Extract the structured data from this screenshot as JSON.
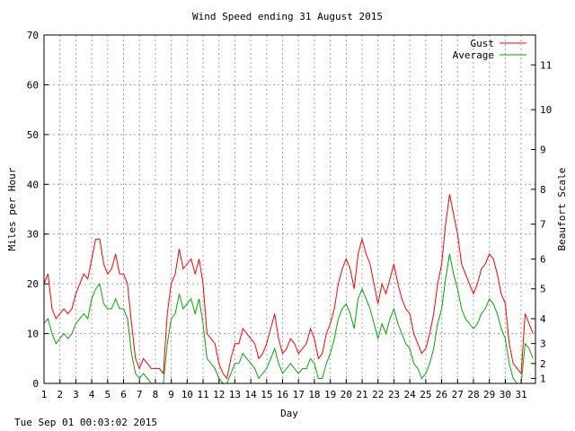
{
  "chart_data": {
    "type": "line",
    "title": "Wind Speed ending 31 August 2015",
    "xlabel": "Day",
    "ylabel": "Miles per Hour",
    "y2label": "Beaufort Scale",
    "xlim": [
      1,
      31.9
    ],
    "ylim": [
      0,
      70
    ],
    "x_ticks": [
      1,
      2,
      3,
      4,
      5,
      6,
      7,
      8,
      9,
      10,
      11,
      12,
      13,
      14,
      15,
      16,
      17,
      18,
      19,
      20,
      21,
      22,
      23,
      24,
      25,
      26,
      27,
      28,
      29,
      30,
      31
    ],
    "y_ticks": [
      0,
      10,
      20,
      30,
      40,
      50,
      60,
      70
    ],
    "beaufort_ticks": [
      {
        "label": "1",
        "mph": 1
      },
      {
        "label": "2",
        "mph": 4
      },
      {
        "label": "3",
        "mph": 8
      },
      {
        "label": "4",
        "mph": 13
      },
      {
        "label": "5",
        "mph": 19
      },
      {
        "label": "6",
        "mph": 25
      },
      {
        "label": "7",
        "mph": 32
      },
      {
        "label": "8",
        "mph": 39
      },
      {
        "label": "9",
        "mph": 47
      },
      {
        "label": "10",
        "mph": 55
      },
      {
        "label": "11",
        "mph": 64
      }
    ],
    "grid": true,
    "legend_position": "top-right",
    "series": [
      {
        "name": "Gust",
        "color": "#ff0000",
        "points": [
          [
            1.0,
            20
          ],
          [
            1.25,
            22
          ],
          [
            1.5,
            15
          ],
          [
            1.75,
            13
          ],
          [
            2.0,
            14
          ],
          [
            2.25,
            15
          ],
          [
            2.5,
            14
          ],
          [
            2.75,
            15
          ],
          [
            3.0,
            18
          ],
          [
            3.25,
            20
          ],
          [
            3.5,
            22
          ],
          [
            3.75,
            21
          ],
          [
            4.0,
            25
          ],
          [
            4.25,
            29
          ],
          [
            4.5,
            29
          ],
          [
            4.75,
            24
          ],
          [
            5.0,
            22
          ],
          [
            5.25,
            23
          ],
          [
            5.5,
            26
          ],
          [
            5.75,
            22
          ],
          [
            6.0,
            22
          ],
          [
            6.25,
            20
          ],
          [
            6.5,
            12
          ],
          [
            6.75,
            5
          ],
          [
            7.0,
            3
          ],
          [
            7.25,
            5
          ],
          [
            7.5,
            4
          ],
          [
            7.75,
            3
          ],
          [
            8.0,
            3
          ],
          [
            8.25,
            3
          ],
          [
            8.5,
            2
          ],
          [
            8.75,
            14
          ],
          [
            9.0,
            20
          ],
          [
            9.25,
            22
          ],
          [
            9.5,
            27
          ],
          [
            9.75,
            23
          ],
          [
            10.0,
            24
          ],
          [
            10.25,
            25
          ],
          [
            10.5,
            22
          ],
          [
            10.75,
            25
          ],
          [
            11.0,
            20
          ],
          [
            11.25,
            10
          ],
          [
            11.5,
            9
          ],
          [
            11.75,
            8
          ],
          [
            12.0,
            4
          ],
          [
            12.25,
            2
          ],
          [
            12.5,
            1
          ],
          [
            12.75,
            5
          ],
          [
            13.0,
            8
          ],
          [
            13.25,
            8
          ],
          [
            13.5,
            11
          ],
          [
            13.75,
            10
          ],
          [
            14.0,
            9
          ],
          [
            14.25,
            8
          ],
          [
            14.5,
            5
          ],
          [
            14.75,
            6
          ],
          [
            15.0,
            8
          ],
          [
            15.25,
            11
          ],
          [
            15.5,
            14
          ],
          [
            15.75,
            9
          ],
          [
            16.0,
            6
          ],
          [
            16.25,
            7
          ],
          [
            16.5,
            9
          ],
          [
            16.75,
            8
          ],
          [
            17.0,
            6
          ],
          [
            17.25,
            7
          ],
          [
            17.5,
            8
          ],
          [
            17.75,
            11
          ],
          [
            18.0,
            9
          ],
          [
            18.25,
            5
          ],
          [
            18.5,
            6
          ],
          [
            18.75,
            10
          ],
          [
            19.0,
            12
          ],
          [
            19.25,
            15
          ],
          [
            19.5,
            20
          ],
          [
            19.75,
            23
          ],
          [
            20.0,
            25
          ],
          [
            20.25,
            23
          ],
          [
            20.5,
            19
          ],
          [
            20.75,
            26
          ],
          [
            21.0,
            29
          ],
          [
            21.25,
            26
          ],
          [
            21.5,
            24
          ],
          [
            21.75,
            20
          ],
          [
            22.0,
            16
          ],
          [
            22.25,
            20
          ],
          [
            22.5,
            18
          ],
          [
            22.75,
            21
          ],
          [
            23.0,
            24
          ],
          [
            23.25,
            20
          ],
          [
            23.5,
            17
          ],
          [
            23.75,
            15
          ],
          [
            24.0,
            14
          ],
          [
            24.25,
            10
          ],
          [
            24.5,
            8
          ],
          [
            24.75,
            6
          ],
          [
            25.0,
            7
          ],
          [
            25.25,
            10
          ],
          [
            25.5,
            14
          ],
          [
            25.75,
            20
          ],
          [
            26.0,
            24
          ],
          [
            26.25,
            32
          ],
          [
            26.5,
            38
          ],
          [
            26.75,
            34
          ],
          [
            27.0,
            30
          ],
          [
            27.25,
            24
          ],
          [
            27.5,
            22
          ],
          [
            27.75,
            20
          ],
          [
            28.0,
            18
          ],
          [
            28.25,
            20
          ],
          [
            28.5,
            23
          ],
          [
            28.75,
            24
          ],
          [
            29.0,
            26
          ],
          [
            29.25,
            25
          ],
          [
            29.5,
            22
          ],
          [
            29.75,
            18
          ],
          [
            30.0,
            16
          ],
          [
            30.25,
            8
          ],
          [
            30.5,
            4
          ],
          [
            30.75,
            3
          ],
          [
            31.0,
            2
          ],
          [
            31.25,
            14
          ],
          [
            31.5,
            12
          ],
          [
            31.75,
            10
          ]
        ]
      },
      {
        "name": "Average",
        "color": "#00aa00",
        "points": [
          [
            1.0,
            12
          ],
          [
            1.25,
            13
          ],
          [
            1.5,
            10
          ],
          [
            1.75,
            8
          ],
          [
            2.0,
            9
          ],
          [
            2.25,
            10
          ],
          [
            2.5,
            9
          ],
          [
            2.75,
            10
          ],
          [
            3.0,
            12
          ],
          [
            3.25,
            13
          ],
          [
            3.5,
            14
          ],
          [
            3.75,
            13
          ],
          [
            4.0,
            17
          ],
          [
            4.25,
            19
          ],
          [
            4.5,
            20
          ],
          [
            4.75,
            16
          ],
          [
            5.0,
            15
          ],
          [
            5.25,
            15
          ],
          [
            5.5,
            17
          ],
          [
            5.75,
            15
          ],
          [
            6.0,
            15
          ],
          [
            6.25,
            13
          ],
          [
            6.5,
            6
          ],
          [
            6.75,
            2
          ],
          [
            7.0,
            1
          ],
          [
            7.25,
            2
          ],
          [
            7.5,
            1
          ],
          [
            7.75,
            0
          ],
          [
            8.0,
            0
          ],
          [
            8.25,
            0
          ],
          [
            8.5,
            0
          ],
          [
            8.75,
            8
          ],
          [
            9.0,
            13
          ],
          [
            9.25,
            14
          ],
          [
            9.5,
            18
          ],
          [
            9.75,
            15
          ],
          [
            10.0,
            16
          ],
          [
            10.25,
            17
          ],
          [
            10.5,
            14
          ],
          [
            10.75,
            17
          ],
          [
            11.0,
            12
          ],
          [
            11.25,
            5
          ],
          [
            11.5,
            4
          ],
          [
            11.75,
            3
          ],
          [
            12.0,
            1
          ],
          [
            12.25,
            0
          ],
          [
            12.5,
            0
          ],
          [
            12.75,
            2
          ],
          [
            13.0,
            4
          ],
          [
            13.25,
            4
          ],
          [
            13.5,
            6
          ],
          [
            13.75,
            5
          ],
          [
            14.0,
            4
          ],
          [
            14.25,
            3
          ],
          [
            14.5,
            1
          ],
          [
            14.75,
            2
          ],
          [
            15.0,
            3
          ],
          [
            15.25,
            5
          ],
          [
            15.5,
            7
          ],
          [
            15.75,
            4
          ],
          [
            16.0,
            2
          ],
          [
            16.25,
            3
          ],
          [
            16.5,
            4
          ],
          [
            16.75,
            3
          ],
          [
            17.0,
            2
          ],
          [
            17.25,
            3
          ],
          [
            17.5,
            3
          ],
          [
            17.75,
            5
          ],
          [
            18.0,
            4
          ],
          [
            18.25,
            1
          ],
          [
            18.5,
            1
          ],
          [
            18.75,
            4
          ],
          [
            19.0,
            6
          ],
          [
            19.25,
            9
          ],
          [
            19.5,
            13
          ],
          [
            19.75,
            15
          ],
          [
            20.0,
            16
          ],
          [
            20.25,
            14
          ],
          [
            20.5,
            11
          ],
          [
            20.75,
            17
          ],
          [
            21.0,
            19
          ],
          [
            21.25,
            17
          ],
          [
            21.5,
            15
          ],
          [
            21.75,
            12
          ],
          [
            22.0,
            9
          ],
          [
            22.25,
            12
          ],
          [
            22.5,
            10
          ],
          [
            22.75,
            13
          ],
          [
            23.0,
            15
          ],
          [
            23.25,
            12
          ],
          [
            23.5,
            10
          ],
          [
            23.75,
            8
          ],
          [
            24.0,
            7
          ],
          [
            24.25,
            4
          ],
          [
            24.5,
            3
          ],
          [
            24.75,
            1
          ],
          [
            25.0,
            2
          ],
          [
            25.25,
            4
          ],
          [
            25.5,
            7
          ],
          [
            25.75,
            12
          ],
          [
            26.0,
            15
          ],
          [
            26.25,
            21
          ],
          [
            26.5,
            26
          ],
          [
            26.75,
            22
          ],
          [
            27.0,
            19
          ],
          [
            27.25,
            15
          ],
          [
            27.5,
            13
          ],
          [
            27.75,
            12
          ],
          [
            28.0,
            11
          ],
          [
            28.25,
            12
          ],
          [
            28.5,
            14
          ],
          [
            28.75,
            15
          ],
          [
            29.0,
            17
          ],
          [
            29.25,
            16
          ],
          [
            29.5,
            14
          ],
          [
            29.75,
            11
          ],
          [
            30.0,
            9
          ],
          [
            30.25,
            4
          ],
          [
            30.5,
            1
          ],
          [
            30.75,
            0
          ],
          [
            31.0,
            0
          ],
          [
            31.25,
            8
          ],
          [
            31.5,
            7
          ],
          [
            31.75,
            5
          ]
        ]
      }
    ]
  },
  "footer": {
    "timestamp": "Tue Sep 01 00:03:02 2015"
  }
}
